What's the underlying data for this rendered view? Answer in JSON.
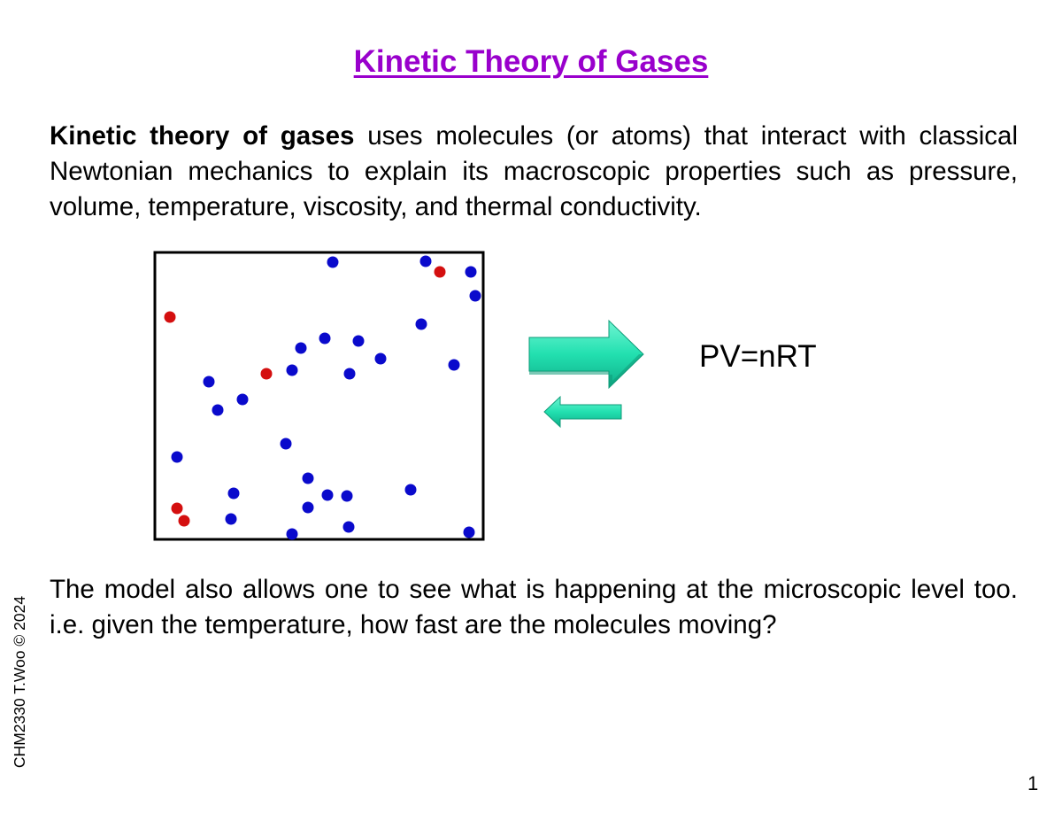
{
  "slide": {
    "title": "Kinetic Theory of Gases",
    "intro": {
      "bold_lead": "Kinetic theory of gases",
      "text": " uses molecules (or atoms) that interact with classical Newtonian mechanics to explain its macroscopic properties such as pressure, volume, temperature, viscosity, and thermal conductivity."
    },
    "equation": "PV=nRT",
    "microscopic_text": "The model also allows one to see what is happening at the microscopic level too.  i.e. given the temperature, how fast are the molecules moving?",
    "side_note": "CHM2330  T.Woo © 2024",
    "page_number": "1"
  },
  "colors": {
    "title": "#9900cc",
    "molecule_blue": "#0a0acc",
    "molecule_red": "#d40f0f",
    "arrow_fill": "#22e0b0",
    "arrow_dark": "#0f9b78",
    "box_border": "#000000"
  }
}
